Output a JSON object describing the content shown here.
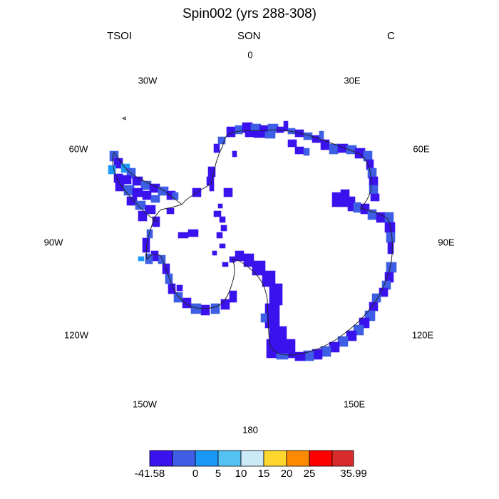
{
  "title": "Spin002 (yrs 288-308)",
  "variable": "TSOI",
  "season": "SON",
  "units": "C",
  "longitude_labels": {
    "lon_0": "0",
    "lon_30e": "30E",
    "lon_60e": "60E",
    "lon_90e": "90E",
    "lon_120e": "120E",
    "lon_150e": "150E",
    "lon_180": "180",
    "lon_150w": "150W",
    "lon_120w": "120W",
    "lon_90w": "90W",
    "lon_60w": "60W",
    "lon_30w": "30W"
  },
  "colorbar": {
    "colors": [
      "#3a12ee",
      "#3d5ee5",
      "#1a98fa",
      "#53c2f2",
      "#cbe8f6",
      "#fdd72e",
      "#fd8a00",
      "#fd0000",
      "#d82c2c"
    ],
    "labels": {
      "l0": "-41.58",
      "l1": "0",
      "l2": "5",
      "l3": "10",
      "l4": "15",
      "l5": "20",
      "l6": "25",
      "l7": "35.99"
    }
  },
  "colors": {
    "cold": "#3a12ee",
    "cool": "#3d5ee5",
    "mild": "#1a98fa",
    "coast": "#222222"
  }
}
